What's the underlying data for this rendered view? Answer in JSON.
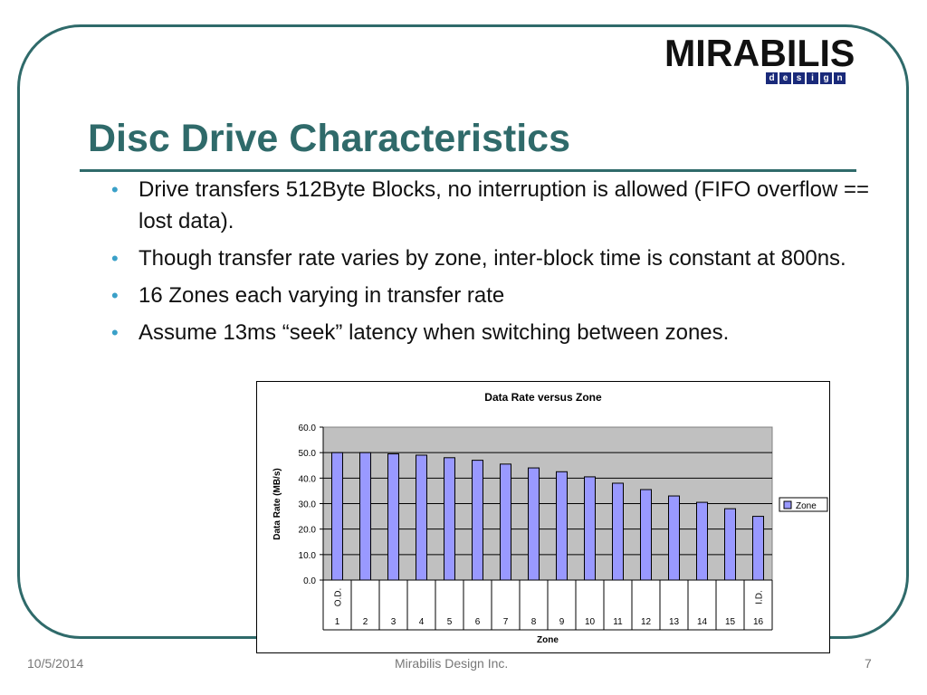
{
  "logo": {
    "word": "MIRABILIS",
    "sub": [
      "d",
      "e",
      "s",
      "i",
      "g",
      "n"
    ]
  },
  "title": "Disc Drive Characteristics",
  "bullets": [
    "Drive transfers 512Byte Blocks, no interruption is allowed (FIFO overflow == lost data).",
    "Though transfer rate varies by zone, inter-block time is constant at 800ns.",
    "16 Zones each varying in transfer rate",
    "Assume 13ms “seek” latency when switching between zones."
  ],
  "footer": {
    "date": "10/5/2014",
    "center": "Mirabilis Design Inc.",
    "page": "7"
  },
  "colors": {
    "accent": "#2f6a6a",
    "bullet": "#3aa0c8",
    "bar": "#9999ff",
    "plot_bg": "#c0c0c0"
  },
  "chart_data": {
    "type": "bar",
    "title": "Data Rate versus Zone",
    "xlabel": "Zone",
    "ylabel": "Data Rate (MB/s)",
    "categories": [
      "1",
      "2",
      "3",
      "4",
      "5",
      "6",
      "7",
      "8",
      "9",
      "10",
      "11",
      "12",
      "13",
      "14",
      "15",
      "16"
    ],
    "category_annotations": {
      "1": "O.D.",
      "16": "I.D."
    },
    "series": [
      {
        "name": "Zone",
        "values": [
          50.0,
          50.0,
          49.5,
          49.0,
          48.0,
          47.0,
          45.5,
          44.0,
          42.5,
          40.5,
          38.0,
          35.5,
          33.0,
          30.5,
          28.0,
          25.0
        ]
      }
    ],
    "ylim": [
      0,
      60
    ],
    "yticks": [
      "0.0",
      "10.0",
      "20.0",
      "30.0",
      "40.0",
      "50.0",
      "60.0"
    ],
    "grid": true,
    "legend": "right"
  }
}
